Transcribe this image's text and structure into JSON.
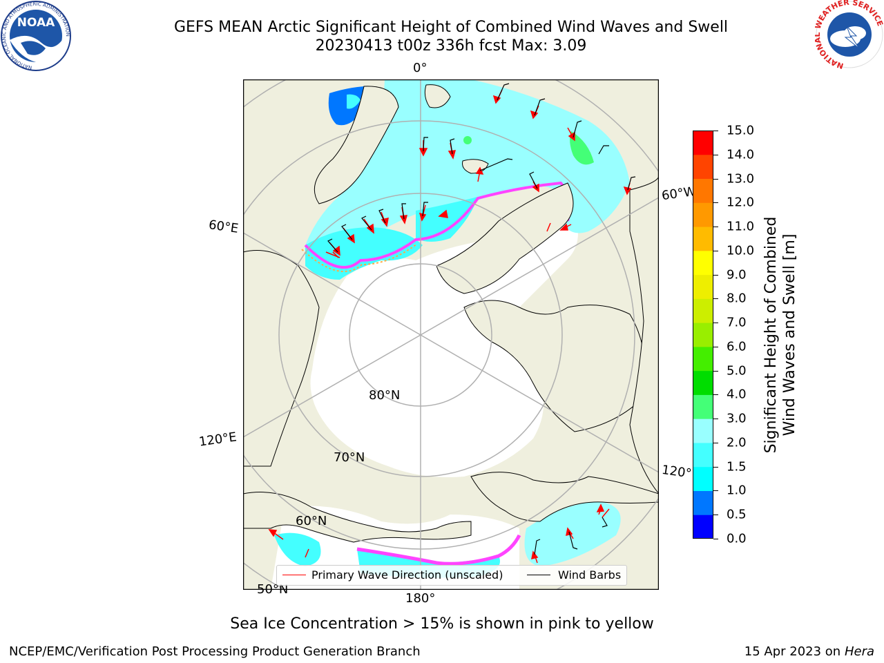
{
  "title_line1": "GEFS MEAN Arctic Significant Height of Combined Wind Waves and Swell",
  "title_line2": "20230413 t00z 336h fcst   Max: 3.09",
  "labels": {
    "lon_0": "0°",
    "lon_60e": "60°E",
    "lon_60w": "60°W",
    "lon_120e": "120°E",
    "lon_120w": "120°W",
    "lon_180": "180°",
    "lat_80": "80°N",
    "lat_70": "70°N",
    "lat_60": "60°N",
    "lat_50": "50°N"
  },
  "legend": {
    "wave_dir": "Primary Wave Direction (unscaled)",
    "wind_barbs": "Wind Barbs",
    "wave_color": "#ff0000",
    "barb_color": "#000000"
  },
  "colorbar": {
    "label_line1": "Significant Height of Combined",
    "label_line2": "Wind Waves and Swell [m]",
    "ticks": [
      "0.0",
      "0.5",
      "1.0",
      "1.5",
      "2.0",
      "3.0",
      "4.0",
      "5.0",
      "6.0",
      "7.0",
      "8.0",
      "9.0",
      "10.0",
      "11.0",
      "12.0",
      "13.0",
      "14.0",
      "15.0"
    ],
    "colors": [
      "#0000ff",
      "#0077ff",
      "#00ffff",
      "#44ffff",
      "#99ffff",
      "#44ff77",
      "#00dd00",
      "#44ee00",
      "#99ee00",
      "#ccee00",
      "#eeee00",
      "#ffff00",
      "#ffbb00",
      "#ff9900",
      "#ff7700",
      "#ff4400",
      "#ff0000"
    ]
  },
  "map_colors": {
    "land": "#efefde",
    "ice": "#ffffff",
    "wave_low": "#00ffff",
    "wave_mid": "#99ffff",
    "wave_green": "#44ff77",
    "wave_blue": "#0077ff",
    "ice_edge_pink": "#ff44ff",
    "ice_edge_orange": "#ffaa44",
    "graticule": "#b0b0b0"
  },
  "sea_ice_note": "Sea Ice Concentration > 15% is shown in pink to yellow",
  "credit": "NCEP/EMC/Verification Post Processing Product Generation Branch",
  "date_prefix": "15 Apr 2023 on ",
  "date_machine": "Hera",
  "logos": {
    "noaa_text": "NOAA",
    "noaa_ring_text": "NATIONAL OCEANIC AND ATMOSPHERIC ADMINISTRATION",
    "nws_ring_text": "NATIONAL WEATHER SERVICE"
  }
}
